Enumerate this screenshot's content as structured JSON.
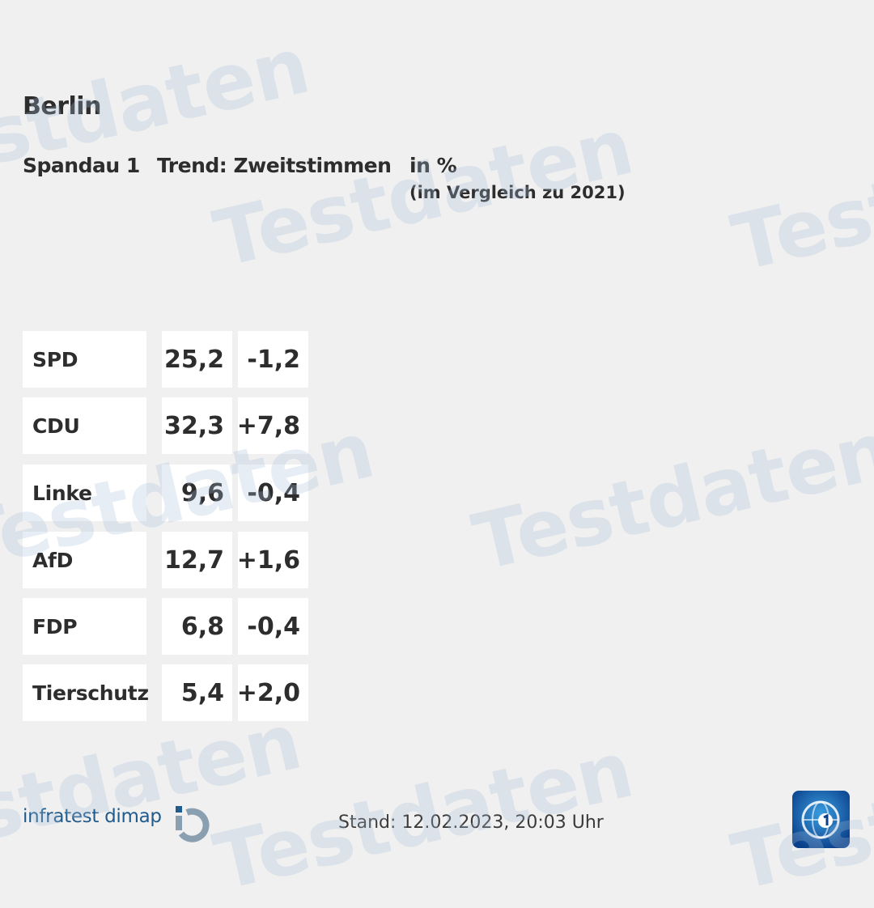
{
  "region": "Berlin",
  "header": {
    "constituency": "Spandau 1",
    "chart_title": "Trend: Zweitstimmen",
    "unit": "in %",
    "comparison": "(im Vergleich zu 2021)"
  },
  "watermark_text": "Testdaten",
  "results": [
    {
      "party": "SPD",
      "value": "25,2",
      "diff": "-1,2"
    },
    {
      "party": "CDU",
      "value": "32,3",
      "diff": "+7,8"
    },
    {
      "party": "Linke",
      "value": "9,6",
      "diff": "-0,4"
    },
    {
      "party": "AfD",
      "value": "12,7",
      "diff": "+1,6"
    },
    {
      "party": "FDP",
      "value": "6,8",
      "diff": "-0,4"
    },
    {
      "party": "Tierschutz",
      "value": "5,4",
      "diff": "+2,0"
    }
  ],
  "footer": {
    "brand": "infratest dimap",
    "stand": "Stand: 12.02.2023, 20:03 Uhr"
  },
  "colors": {
    "background": "#f0f0f0",
    "text": "#2d2d2d",
    "brand_blue": "#1f5b8c",
    "watermark": "#a5bed7"
  },
  "icons": {
    "brand_mark": "infratest-dimap-mark-icon",
    "broadcaster_logo": "ard-das-erste-logo-icon"
  }
}
